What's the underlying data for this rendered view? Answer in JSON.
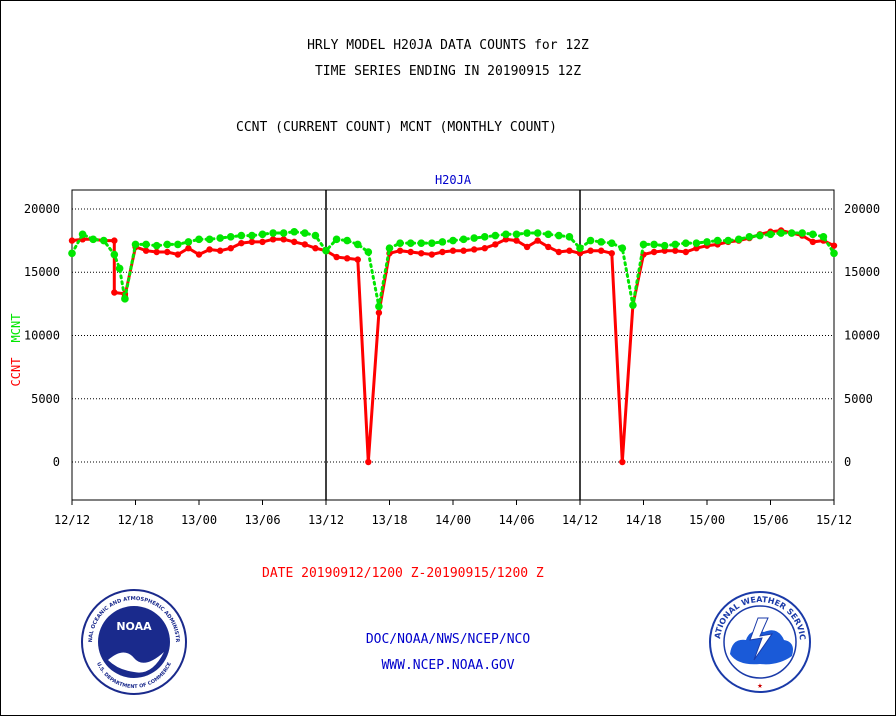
{
  "header": {
    "title_line1": "HRLY MODEL H20JA DATA COUNTS for 12Z",
    "title_line2": "TIME SERIES ENDING IN 20190915 12Z",
    "subtitle": "CCNT (CURRENT COUNT) MCNT (MONTHLY COUNT)"
  },
  "footer": {
    "date_range": "DATE 20190912/1200 Z-20190915/1200 Z",
    "org_line": "DOC/NOAA/NWS/NCEP/NCO",
    "url_line": "WWW.NCEP.NOAA.GOV"
  },
  "logos": {
    "noaa_badge": "NOAA",
    "noaa_ring_text": "NATIONAL OCEANIC AND ATMOSPHERIC ADMINISTRATION",
    "noaa_ring_bottom": "U.S. DEPARTMENT OF COMMERCE",
    "nws_ring_text": "NATIONAL WEATHER SERVICE"
  },
  "colors": {
    "ccnt": "#ff0000",
    "mcnt": "#00e600",
    "title": "#000000",
    "footer_blue": "#0000cc",
    "frame_label": "#0000cc"
  },
  "chart_data": {
    "type": "line",
    "title": "H20JA",
    "ylabel_ccnt": "CCNT",
    "ylabel_mcnt": "MCNT",
    "x_tick_labels": [
      "12/12",
      "12/18",
      "13/00",
      "13/06",
      "13/12",
      "13/18",
      "14/00",
      "14/06",
      "14/12",
      "14/18",
      "15/00",
      "15/06",
      "15/12"
    ],
    "x_range_hours": [
      0,
      72
    ],
    "y_ticks": [
      0,
      5000,
      10000,
      15000,
      20000
    ],
    "y_tick_labels": [
      "0",
      "5000",
      "10000",
      "15000",
      "20000"
    ],
    "ylim": [
      -3000,
      21500
    ],
    "grid": true,
    "series": [
      {
        "name": "CCNT",
        "color": "#ff0000",
        "values": [
          {
            "x": 0,
            "y": 17500
          },
          {
            "x": 1,
            "y": 17600
          },
          {
            "x": 2,
            "y": 17600
          },
          {
            "x": 3,
            "y": 17500
          },
          {
            "x": 4,
            "y": 17500
          },
          {
            "x": 4,
            "y": 13400
          },
          {
            "x": 5,
            "y": 13300
          },
          {
            "x": 5,
            "y": 13100
          },
          {
            "x": 6,
            "y": 17000
          },
          {
            "x": 7,
            "y": 16700
          },
          {
            "x": 8,
            "y": 16600
          },
          {
            "x": 9,
            "y": 16600
          },
          {
            "x": 10,
            "y": 16400
          },
          {
            "x": 11,
            "y": 16900
          },
          {
            "x": 12,
            "y": 16400
          },
          {
            "x": 13,
            "y": 16800
          },
          {
            "x": 14,
            "y": 16700
          },
          {
            "x": 15,
            "y": 16900
          },
          {
            "x": 16,
            "y": 17300
          },
          {
            "x": 17,
            "y": 17400
          },
          {
            "x": 18,
            "y": 17400
          },
          {
            "x": 19,
            "y": 17600
          },
          {
            "x": 20,
            "y": 17600
          },
          {
            "x": 21,
            "y": 17400
          },
          {
            "x": 22,
            "y": 17200
          },
          {
            "x": 23,
            "y": 16900
          },
          {
            "x": 24,
            "y": 16700
          },
          {
            "x": 25,
            "y": 16200
          },
          {
            "x": 26,
            "y": 16100
          },
          {
            "x": 27,
            "y": 16000
          },
          {
            "x": 28,
            "y": 0
          },
          {
            "x": 29,
            "y": 11800
          },
          {
            "x": 30,
            "y": 16500
          },
          {
            "x": 31,
            "y": 16700
          },
          {
            "x": 32,
            "y": 16600
          },
          {
            "x": 33,
            "y": 16500
          },
          {
            "x": 34,
            "y": 16400
          },
          {
            "x": 35,
            "y": 16600
          },
          {
            "x": 36,
            "y": 16700
          },
          {
            "x": 37,
            "y": 16700
          },
          {
            "x": 38,
            "y": 16800
          },
          {
            "x": 39,
            "y": 16900
          },
          {
            "x": 40,
            "y": 17200
          },
          {
            "x": 41,
            "y": 17600
          },
          {
            "x": 42,
            "y": 17500
          },
          {
            "x": 43,
            "y": 17000
          },
          {
            "x": 44,
            "y": 17500
          },
          {
            "x": 45,
            "y": 17000
          },
          {
            "x": 46,
            "y": 16600
          },
          {
            "x": 47,
            "y": 16700
          },
          {
            "x": 48,
            "y": 16500
          },
          {
            "x": 49,
            "y": 16700
          },
          {
            "x": 50,
            "y": 16700
          },
          {
            "x": 51,
            "y": 16500
          },
          {
            "x": 52,
            "y": 0
          },
          {
            "x": 53,
            "y": 12400
          },
          {
            "x": 54,
            "y": 16400
          },
          {
            "x": 55,
            "y": 16600
          },
          {
            "x": 56,
            "y": 16700
          },
          {
            "x": 57,
            "y": 16700
          },
          {
            "x": 58,
            "y": 16600
          },
          {
            "x": 59,
            "y": 16900
          },
          {
            "x": 60,
            "y": 17100
          },
          {
            "x": 61,
            "y": 17200
          },
          {
            "x": 62,
            "y": 17400
          },
          {
            "x": 63,
            "y": 17500
          },
          {
            "x": 64,
            "y": 17700
          },
          {
            "x": 65,
            "y": 18000
          },
          {
            "x": 66,
            "y": 18200
          },
          {
            "x": 67,
            "y": 18300
          },
          {
            "x": 68,
            "y": 18100
          },
          {
            "x": 69,
            "y": 17900
          },
          {
            "x": 70,
            "y": 17400
          },
          {
            "x": 71,
            "y": 17500
          },
          {
            "x": 72,
            "y": 17100
          }
        ]
      },
      {
        "name": "MCNT",
        "color": "#00e600",
        "values": [
          {
            "x": 0,
            "y": 16500
          },
          {
            "x": 1,
            "y": 18000
          },
          {
            "x": 2,
            "y": 17600
          },
          {
            "x": 3,
            "y": 17500
          },
          {
            "x": 4,
            "y": 16400
          },
          {
            "x": 4.5,
            "y": 15300
          },
          {
            "x": 5,
            "y": 12900
          },
          {
            "x": 6,
            "y": 17200
          },
          {
            "x": 7,
            "y": 17200
          },
          {
            "x": 8,
            "y": 17100
          },
          {
            "x": 9,
            "y": 17200
          },
          {
            "x": 10,
            "y": 17200
          },
          {
            "x": 11,
            "y": 17400
          },
          {
            "x": 12,
            "y": 17600
          },
          {
            "x": 13,
            "y": 17600
          },
          {
            "x": 14,
            "y": 17700
          },
          {
            "x": 15,
            "y": 17800
          },
          {
            "x": 16,
            "y": 17900
          },
          {
            "x": 17,
            "y": 17900
          },
          {
            "x": 18,
            "y": 18000
          },
          {
            "x": 19,
            "y": 18100
          },
          {
            "x": 20,
            "y": 18100
          },
          {
            "x": 21,
            "y": 18200
          },
          {
            "x": 22,
            "y": 18100
          },
          {
            "x": 23,
            "y": 17900
          },
          {
            "x": 24,
            "y": 16700
          },
          {
            "x": 25,
            "y": 17600
          },
          {
            "x": 26,
            "y": 17500
          },
          {
            "x": 27,
            "y": 17200
          },
          {
            "x": 28,
            "y": 16600
          },
          {
            "x": 29,
            "y": 12300
          },
          {
            "x": 30,
            "y": 16900
          },
          {
            "x": 31,
            "y": 17300
          },
          {
            "x": 32,
            "y": 17300
          },
          {
            "x": 33,
            "y": 17300
          },
          {
            "x": 34,
            "y": 17300
          },
          {
            "x": 35,
            "y": 17400
          },
          {
            "x": 36,
            "y": 17500
          },
          {
            "x": 37,
            "y": 17600
          },
          {
            "x": 38,
            "y": 17700
          },
          {
            "x": 39,
            "y": 17800
          },
          {
            "x": 40,
            "y": 17900
          },
          {
            "x": 41,
            "y": 18000
          },
          {
            "x": 42,
            "y": 18000
          },
          {
            "x": 43,
            "y": 18100
          },
          {
            "x": 44,
            "y": 18100
          },
          {
            "x": 45,
            "y": 18000
          },
          {
            "x": 46,
            "y": 17900
          },
          {
            "x": 47,
            "y": 17800
          },
          {
            "x": 48,
            "y": 16900
          },
          {
            "x": 49,
            "y": 17500
          },
          {
            "x": 50,
            "y": 17400
          },
          {
            "x": 51,
            "y": 17300
          },
          {
            "x": 52,
            "y": 16900
          },
          {
            "x": 53,
            "y": 12400
          },
          {
            "x": 54,
            "y": 17200
          },
          {
            "x": 55,
            "y": 17200
          },
          {
            "x": 56,
            "y": 17100
          },
          {
            "x": 57,
            "y": 17200
          },
          {
            "x": 58,
            "y": 17300
          },
          {
            "x": 59,
            "y": 17300
          },
          {
            "x": 60,
            "y": 17400
          },
          {
            "x": 61,
            "y": 17500
          },
          {
            "x": 62,
            "y": 17500
          },
          {
            "x": 63,
            "y": 17600
          },
          {
            "x": 64,
            "y": 17800
          },
          {
            "x": 65,
            "y": 17900
          },
          {
            "x": 66,
            "y": 18000
          },
          {
            "x": 67,
            "y": 18100
          },
          {
            "x": 68,
            "y": 18100
          },
          {
            "x": 69,
            "y": 18100
          },
          {
            "x": 70,
            "y": 18000
          },
          {
            "x": 71,
            "y": 17800
          },
          {
            "x": 72,
            "y": 16500
          }
        ]
      }
    ]
  }
}
